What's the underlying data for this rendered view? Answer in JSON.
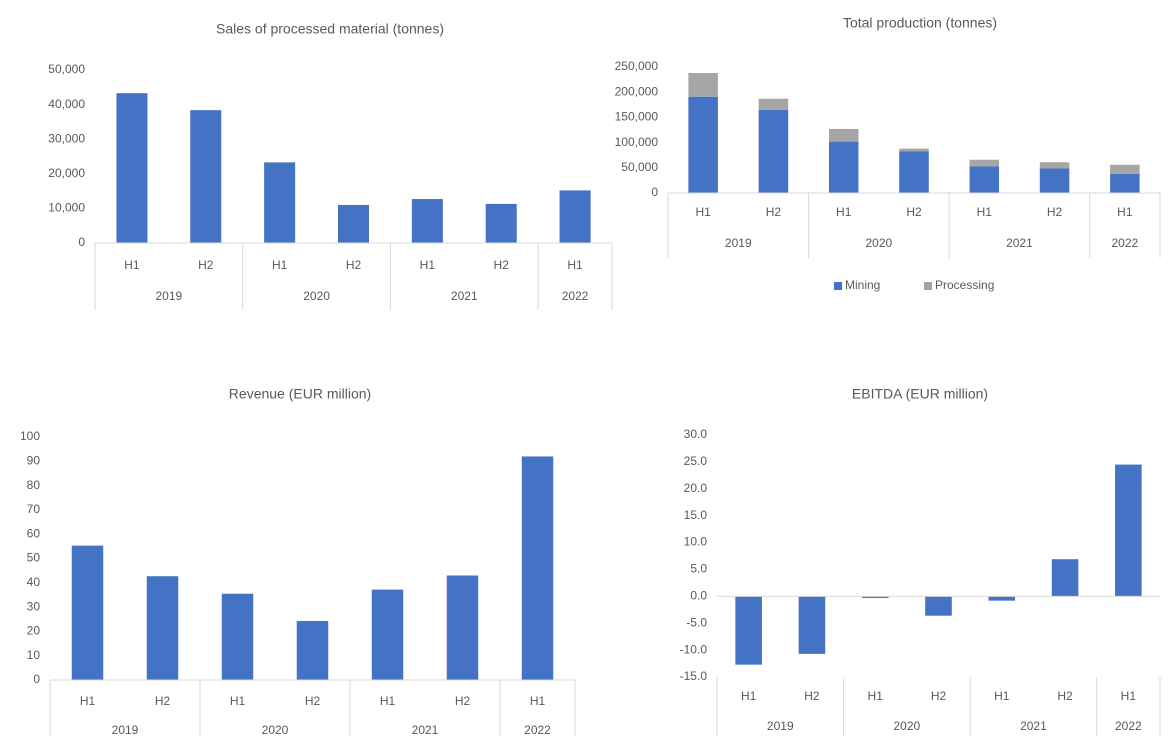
{
  "chart_data": [
    {
      "type": "bar",
      "title": "Sales of processed material (tonnes)",
      "groups": [
        {
          "name": "2019",
          "categories": [
            "H1",
            "H2"
          ]
        },
        {
          "name": "2020",
          "categories": [
            "H1",
            "H2"
          ]
        },
        {
          "name": "2021",
          "categories": [
            "H1",
            "H2"
          ]
        },
        {
          "name": "2022",
          "categories": [
            "H1"
          ]
        }
      ],
      "series": [
        {
          "name": "Sales",
          "color": "#4472c4",
          "values": [
            43300,
            38400,
            23300,
            11000,
            12700,
            11300,
            15200
          ]
        }
      ],
      "ylim": [
        0,
        50000
      ],
      "yticks": [
        0,
        {
          "value": 10000,
          "label": "10,000"
        },
        {
          "value": 20000,
          "label": "20,000"
        },
        {
          "value": 30000,
          "label": "30,000"
        },
        {
          "value": 40000,
          "label": "40,000"
        },
        {
          "value": 50000,
          "label": "50,000"
        }
      ]
    },
    {
      "type": "bar",
      "stacked": true,
      "title": "Total production (tonnes)",
      "groups": [
        {
          "name": "2019",
          "categories": [
            "H1",
            "H2"
          ]
        },
        {
          "name": "2020",
          "categories": [
            "H1",
            "H2"
          ]
        },
        {
          "name": "2021",
          "categories": [
            "H1",
            "H2"
          ]
        },
        {
          "name": "2022",
          "categories": [
            "H1"
          ]
        }
      ],
      "series": [
        {
          "name": "Mining",
          "color": "#4472c4",
          "values": [
            191000,
            165000,
            102000,
            83000,
            53000,
            49000,
            38000
          ]
        },
        {
          "name": "Processing",
          "color": "#a5a5a5",
          "values": [
            47000,
            22000,
            25000,
            5000,
            13000,
            12000,
            18000
          ]
        }
      ],
      "ylim": [
        0,
        250000
      ],
      "legend": "bottom",
      "yticks": [
        0,
        {
          "value": 50000,
          "label": "50,000"
        },
        {
          "value": 100000,
          "label": "100,000"
        },
        {
          "value": 150000,
          "label": "150,000"
        },
        {
          "value": 200000,
          "label": "200,000"
        },
        {
          "value": 250000,
          "label": "250,000"
        }
      ]
    },
    {
      "type": "bar",
      "title": "Revenue (EUR million)",
      "groups": [
        {
          "name": "2019",
          "categories": [
            "H1",
            "H2"
          ]
        },
        {
          "name": "2020",
          "categories": [
            "H1",
            "H2"
          ]
        },
        {
          "name": "2021",
          "categories": [
            "H1",
            "H2"
          ]
        },
        {
          "name": "2022",
          "categories": [
            "H1"
          ]
        }
      ],
      "series": [
        {
          "name": "Revenue",
          "color": "#4472c4",
          "values": [
            55.3,
            42.7,
            35.5,
            24.3,
            37.2,
            43.0,
            92.0
          ]
        }
      ],
      "ylim": [
        0,
        100
      ],
      "yticks": [
        0,
        10,
        20,
        30,
        40,
        50,
        60,
        70,
        80,
        90,
        100
      ]
    },
    {
      "type": "bar",
      "title": "EBITDA (EUR million)",
      "groups": [
        {
          "name": "2019",
          "categories": [
            "H1",
            "H2"
          ]
        },
        {
          "name": "2020",
          "categories": [
            "H1",
            "H2"
          ]
        },
        {
          "name": "2021",
          "categories": [
            "H1",
            "H2"
          ]
        },
        {
          "name": "2022",
          "categories": [
            "H1"
          ]
        }
      ],
      "series": [
        {
          "name": "EBITDA",
          "color": "#4472c4",
          "values": [
            -12.7,
            -10.7,
            -0.3,
            -3.6,
            -0.8,
            6.9,
            24.5
          ]
        }
      ],
      "ylim": [
        -15,
        30
      ],
      "yticks": [
        {
          "value": -15,
          "label": "-15.0"
        },
        {
          "value": -10,
          "label": "-10.0"
        },
        {
          "value": -5,
          "label": "-5.0"
        },
        {
          "value": 0,
          "label": "0.0"
        },
        {
          "value": 5,
          "label": "5.0"
        },
        {
          "value": 10,
          "label": "10.0"
        },
        {
          "value": 15,
          "label": "15.0"
        },
        {
          "value": 20,
          "label": "20.0"
        },
        {
          "value": 25,
          "label": "25.0"
        },
        {
          "value": 30,
          "label": "30.0"
        }
      ]
    }
  ]
}
